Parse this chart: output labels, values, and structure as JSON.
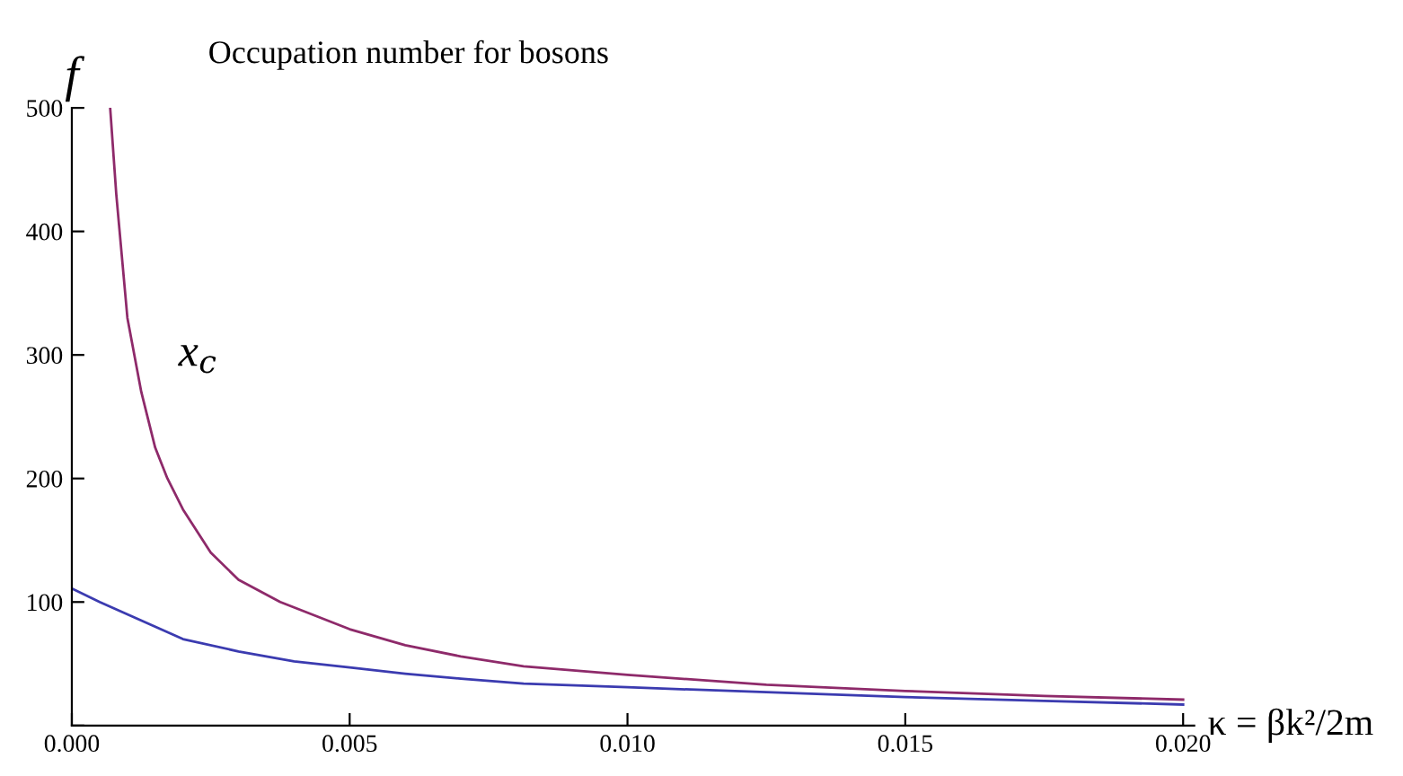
{
  "chart_data": {
    "type": "line",
    "title": "Occupation number for bosons",
    "xlabel": "κ = βk²/2m",
    "ylabel": "f",
    "annotations": [
      "x$_{c}$"
    ],
    "series": [
      {
        "color": "#8e2a6a",
        "x": [
          0.00069,
          0.0008,
          0.001,
          0.00125,
          0.0015,
          0.00172,
          0.002,
          0.0025,
          0.003,
          0.00375,
          0.005,
          0.006,
          0.007,
          0.00813,
          0.01,
          0.0125,
          0.015,
          0.0175,
          0.02
        ],
        "values": [
          500,
          430,
          330,
          270,
          225,
          200,
          175,
          140,
          118,
          100,
          78,
          65,
          56,
          48,
          41,
          33,
          28,
          24,
          21
        ]
      },
      {
        "color": "#3b3bb0",
        "x": [
          0,
          0.0005,
          0.001,
          0.0015,
          0.002,
          0.003,
          0.004,
          0.005,
          0.006,
          0.007,
          0.00813,
          0.01,
          0.0125,
          0.015,
          0.0175,
          0.02
        ],
        "values": [
          111,
          100,
          90,
          80,
          70,
          60,
          52,
          47,
          42,
          38,
          34,
          31,
          27,
          23,
          20,
          17
        ]
      }
    ],
    "xlim": [
      0,
      0.0202
    ],
    "ylim": [
      0,
      500
    ],
    "xticks": [
      {
        "value": 0,
        "label": "0.000"
      },
      {
        "value": 0.005,
        "label": "0.005"
      },
      {
        "value": 0.01,
        "label": "0.010"
      },
      {
        "value": 0.015,
        "label": "0.015"
      },
      {
        "value": 0.02,
        "label": "0.020"
      }
    ],
    "yticks": [
      {
        "value": 0,
        "label": null
      },
      100,
      200,
      300,
      400,
      500
    ],
    "grid": false,
    "legend": false,
    "marker": "none",
    "line_style": "solid"
  }
}
